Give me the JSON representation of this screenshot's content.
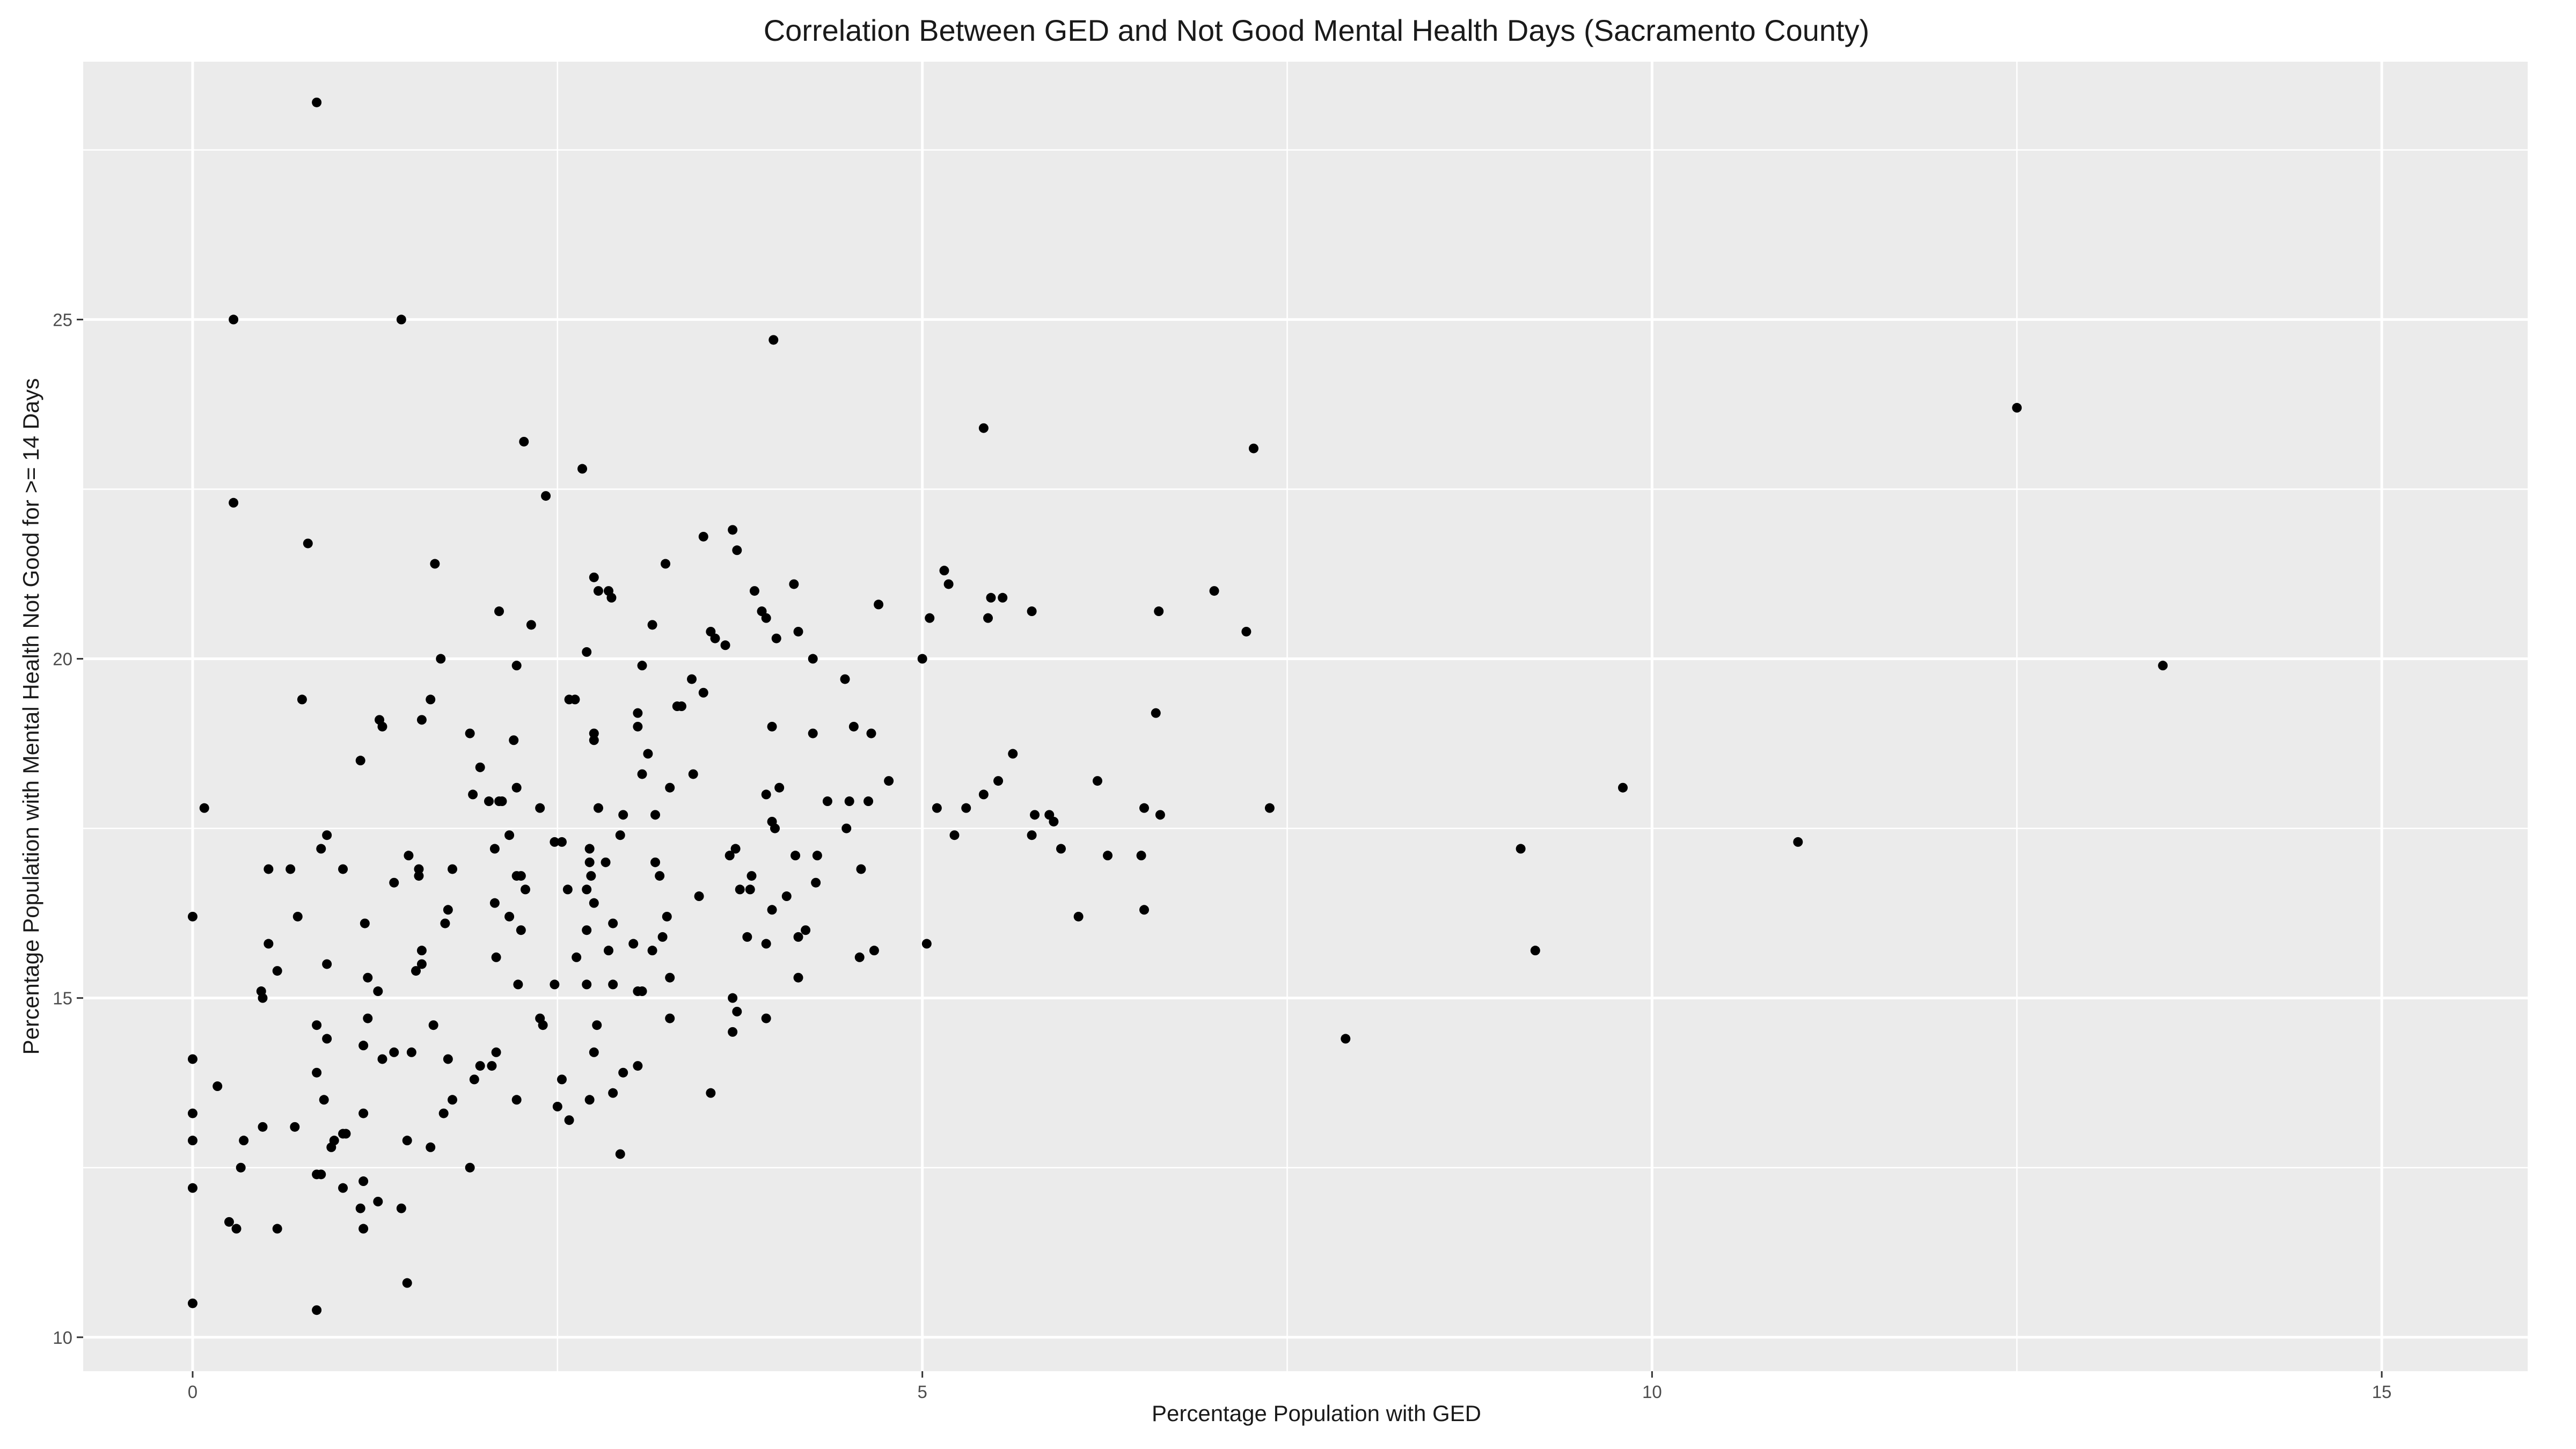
{
  "chart_data": {
    "type": "scatter",
    "title": "Correlation Between GED and Not Good Mental Health Days (Sacramento County)",
    "xlabel": "Percentage Population with GED",
    "ylabel": "Percentage Population with Mental Health Not Good for >= 14 Days",
    "xlim": [
      -0.75,
      16.0
    ],
    "ylim": [
      9.5,
      28.8
    ],
    "x_ticks": [
      0,
      5,
      10,
      15
    ],
    "y_ticks": [
      10,
      15,
      20,
      25
    ],
    "grid": true,
    "panel_background": "#ebebeb",
    "grid_color": "#ffffff",
    "point_color": "#000000",
    "points": [
      [
        0.85,
        28.2
      ],
      [
        0.28,
        25.0
      ],
      [
        1.43,
        25.0
      ],
      [
        3.98,
        24.7
      ],
      [
        5.42,
        23.4
      ],
      [
        2.27,
        23.2
      ],
      [
        7.27,
        23.1
      ],
      [
        2.67,
        22.8
      ],
      [
        12.5,
        23.7
      ],
      [
        0.28,
        22.3
      ],
      [
        2.42,
        22.4
      ],
      [
        0.79,
        21.7
      ],
      [
        3.5,
        21.8
      ],
      [
        3.7,
        21.9
      ],
      [
        3.73,
        21.6
      ],
      [
        1.66,
        21.4
      ],
      [
        3.24,
        21.4
      ],
      [
        2.75,
        21.2
      ],
      [
        5.15,
        21.3
      ],
      [
        5.18,
        21.1
      ],
      [
        4.12,
        21.1
      ],
      [
        2.78,
        21.0
      ],
      [
        2.85,
        21.0
      ],
      [
        2.87,
        20.9
      ],
      [
        5.47,
        20.9
      ],
      [
        5.55,
        20.9
      ],
      [
        7.0,
        21.0
      ],
      [
        3.85,
        21.0
      ],
      [
        5.75,
        20.7
      ],
      [
        6.62,
        20.7
      ],
      [
        4.7,
        20.8
      ],
      [
        2.1,
        20.7
      ],
      [
        3.9,
        20.7
      ],
      [
        3.93,
        20.6
      ],
      [
        5.05,
        20.6
      ],
      [
        5.45,
        20.6
      ],
      [
        2.32,
        20.5
      ],
      [
        3.15,
        20.5
      ],
      [
        3.55,
        20.4
      ],
      [
        3.58,
        20.3
      ],
      [
        3.65,
        20.2
      ],
      [
        4.0,
        20.3
      ],
      [
        4.15,
        20.4
      ],
      [
        7.22,
        20.4
      ],
      [
        1.7,
        20.0
      ],
      [
        2.7,
        20.1
      ],
      [
        3.08,
        19.9
      ],
      [
        2.22,
        19.9
      ],
      [
        3.42,
        19.7
      ],
      [
        4.47,
        19.7
      ],
      [
        5.0,
        20.0
      ],
      [
        4.25,
        20.0
      ],
      [
        13.5,
        19.9
      ],
      [
        0.75,
        19.4
      ],
      [
        1.28,
        19.1
      ],
      [
        1.3,
        19.0
      ],
      [
        1.63,
        19.4
      ],
      [
        1.57,
        19.1
      ],
      [
        2.58,
        19.4
      ],
      [
        2.62,
        19.4
      ],
      [
        3.5,
        19.5
      ],
      [
        3.05,
        19.2
      ],
      [
        3.32,
        19.3
      ],
      [
        3.35,
        19.3
      ],
      [
        3.05,
        19.0
      ],
      [
        2.75,
        18.9
      ],
      [
        2.75,
        18.8
      ],
      [
        2.2,
        18.8
      ],
      [
        1.9,
        18.9
      ],
      [
        3.97,
        19.0
      ],
      [
        4.25,
        18.9
      ],
      [
        4.53,
        19.0
      ],
      [
        4.65,
        18.9
      ],
      [
        6.6,
        19.2
      ],
      [
        1.15,
        18.5
      ],
      [
        1.97,
        18.4
      ],
      [
        3.12,
        18.6
      ],
      [
        3.08,
        18.3
      ],
      [
        3.43,
        18.3
      ],
      [
        5.62,
        18.6
      ],
      [
        4.77,
        18.2
      ],
      [
        5.52,
        18.2
      ],
      [
        6.2,
        18.2
      ],
      [
        9.8,
        18.1
      ],
      [
        0.08,
        17.8
      ],
      [
        1.92,
        18.0
      ],
      [
        2.03,
        17.9
      ],
      [
        2.1,
        17.9
      ],
      [
        2.12,
        17.9
      ],
      [
        2.22,
        18.1
      ],
      [
        2.38,
        17.8
      ],
      [
        2.78,
        17.8
      ],
      [
        2.95,
        17.7
      ],
      [
        3.27,
        18.1
      ],
      [
        3.17,
        17.7
      ],
      [
        3.93,
        18.0
      ],
      [
        4.02,
        18.1
      ],
      [
        4.35,
        17.9
      ],
      [
        4.5,
        17.9
      ],
      [
        4.63,
        17.9
      ],
      [
        5.1,
        17.8
      ],
      [
        5.3,
        17.8
      ],
      [
        5.42,
        18.0
      ],
      [
        5.77,
        17.7
      ],
      [
        5.87,
        17.7
      ],
      [
        5.9,
        17.6
      ],
      [
        6.52,
        17.8
      ],
      [
        6.63,
        17.7
      ],
      [
        7.38,
        17.8
      ],
      [
        0.92,
        17.4
      ],
      [
        0.88,
        17.2
      ],
      [
        1.48,
        17.1
      ],
      [
        2.07,
        17.2
      ],
      [
        2.17,
        17.4
      ],
      [
        2.48,
        17.3
      ],
      [
        2.53,
        17.3
      ],
      [
        2.72,
        17.2
      ],
      [
        2.72,
        17.0
      ],
      [
        2.83,
        17.0
      ],
      [
        2.93,
        17.4
      ],
      [
        3.17,
        17.0
      ],
      [
        3.68,
        17.1
      ],
      [
        3.72,
        17.2
      ],
      [
        3.97,
        17.6
      ],
      [
        3.99,
        17.5
      ],
      [
        4.13,
        17.1
      ],
      [
        4.28,
        17.1
      ],
      [
        4.48,
        17.5
      ],
      [
        5.22,
        17.4
      ],
      [
        5.75,
        17.4
      ],
      [
        5.95,
        17.2
      ],
      [
        6.27,
        17.1
      ],
      [
        6.5,
        17.1
      ],
      [
        9.1,
        17.2
      ],
      [
        11.0,
        17.3
      ],
      [
        0.52,
        16.9
      ],
      [
        0.67,
        16.9
      ],
      [
        1.03,
        16.9
      ],
      [
        1.38,
        16.7
      ],
      [
        1.55,
        16.8
      ],
      [
        1.55,
        16.9
      ],
      [
        1.78,
        16.9
      ],
      [
        1.75,
        16.3
      ],
      [
        1.73,
        16.1
      ],
      [
        2.07,
        16.4
      ],
      [
        2.17,
        16.2
      ],
      [
        2.22,
        16.8
      ],
      [
        2.25,
        16.8
      ],
      [
        2.28,
        16.6
      ],
      [
        2.57,
        16.6
      ],
      [
        2.7,
        16.6
      ],
      [
        2.73,
        16.8
      ],
      [
        2.75,
        16.4
      ],
      [
        3.2,
        16.8
      ],
      [
        3.25,
        16.2
      ],
      [
        3.47,
        16.5
      ],
      [
        3.75,
        16.6
      ],
      [
        3.82,
        16.6
      ],
      [
        3.83,
        16.8
      ],
      [
        3.97,
        16.3
      ],
      [
        4.07,
        16.5
      ],
      [
        4.27,
        16.7
      ],
      [
        4.58,
        16.9
      ],
      [
        6.52,
        16.3
      ],
      [
        0.0,
        16.2
      ],
      [
        0.72,
        16.2
      ],
      [
        1.18,
        16.1
      ],
      [
        2.25,
        16.0
      ],
      [
        2.7,
        16.0
      ],
      [
        2.88,
        16.1
      ],
      [
        3.22,
        15.9
      ],
      [
        3.8,
        15.9
      ],
      [
        4.15,
        15.9
      ],
      [
        4.2,
        16.0
      ],
      [
        6.07,
        16.2
      ],
      [
        0.52,
        15.8
      ],
      [
        0.58,
        15.4
      ],
      [
        0.92,
        15.5
      ],
      [
        1.2,
        15.3
      ],
      [
        1.27,
        15.1
      ],
      [
        1.53,
        15.4
      ],
      [
        1.57,
        15.5
      ],
      [
        1.57,
        15.7
      ],
      [
        2.08,
        15.6
      ],
      [
        2.23,
        15.2
      ],
      [
        2.48,
        15.2
      ],
      [
        2.63,
        15.6
      ],
      [
        2.7,
        15.2
      ],
      [
        2.85,
        15.7
      ],
      [
        2.88,
        15.2
      ],
      [
        3.02,
        15.8
      ],
      [
        3.05,
        15.1
      ],
      [
        3.08,
        15.1
      ],
      [
        3.15,
        15.7
      ],
      [
        3.27,
        15.3
      ],
      [
        3.7,
        15.0
      ],
      [
        3.93,
        15.8
      ],
      [
        4.15,
        15.3
      ],
      [
        4.57,
        15.6
      ],
      [
        4.67,
        15.7
      ],
      [
        5.03,
        15.8
      ],
      [
        9.2,
        15.7
      ],
      [
        0.47,
        15.1
      ],
      [
        0.48,
        15.0
      ],
      [
        0.85,
        14.6
      ],
      [
        0.92,
        14.4
      ],
      [
        1.17,
        14.3
      ],
      [
        1.2,
        14.7
      ],
      [
        1.3,
        14.1
      ],
      [
        1.38,
        14.2
      ],
      [
        1.5,
        14.2
      ],
      [
        1.65,
        14.6
      ],
      [
        1.75,
        14.1
      ],
      [
        1.93,
        13.8
      ],
      [
        1.97,
        14.0
      ],
      [
        2.05,
        14.0
      ],
      [
        2.08,
        14.2
      ],
      [
        2.38,
        14.7
      ],
      [
        2.4,
        14.6
      ],
      [
        2.75,
        14.2
      ],
      [
        2.77,
        14.6
      ],
      [
        3.05,
        14.0
      ],
      [
        3.27,
        14.7
      ],
      [
        3.7,
        14.5
      ],
      [
        3.73,
        14.8
      ],
      [
        3.93,
        14.7
      ],
      [
        7.9,
        14.4
      ],
      [
        0.0,
        14.1
      ],
      [
        0.17,
        13.7
      ],
      [
        0.0,
        13.3
      ],
      [
        0.0,
        12.9
      ],
      [
        0.35,
        12.9
      ],
      [
        0.48,
        13.1
      ],
      [
        0.7,
        13.1
      ],
      [
        0.85,
        13.9
      ],
      [
        0.9,
        13.5
      ],
      [
        0.95,
        12.8
      ],
      [
        0.97,
        12.9
      ],
      [
        1.03,
        13.0
      ],
      [
        1.05,
        13.0
      ],
      [
        1.17,
        13.3
      ],
      [
        1.47,
        12.9
      ],
      [
        1.63,
        12.8
      ],
      [
        1.72,
        13.3
      ],
      [
        1.78,
        13.5
      ],
      [
        2.22,
        13.5
      ],
      [
        2.5,
        13.4
      ],
      [
        2.53,
        13.8
      ],
      [
        2.58,
        13.2
      ],
      [
        2.72,
        13.5
      ],
      [
        2.88,
        13.6
      ],
      [
        2.95,
        13.9
      ],
      [
        3.55,
        13.6
      ],
      [
        0.33,
        12.5
      ],
      [
        0.85,
        12.4
      ],
      [
        0.88,
        12.4
      ],
      [
        1.03,
        12.2
      ],
      [
        1.15,
        11.9
      ],
      [
        1.17,
        12.3
      ],
      [
        1.27,
        12.0
      ],
      [
        1.43,
        11.9
      ],
      [
        1.9,
        12.5
      ],
      [
        2.93,
        12.7
      ],
      [
        0.0,
        12.2
      ],
      [
        0.25,
        11.7
      ],
      [
        0.3,
        11.6
      ],
      [
        0.58,
        11.6
      ],
      [
        1.17,
        11.6
      ],
      [
        1.47,
        10.8
      ],
      [
        0.0,
        10.5
      ],
      [
        0.85,
        10.4
      ]
    ]
  }
}
